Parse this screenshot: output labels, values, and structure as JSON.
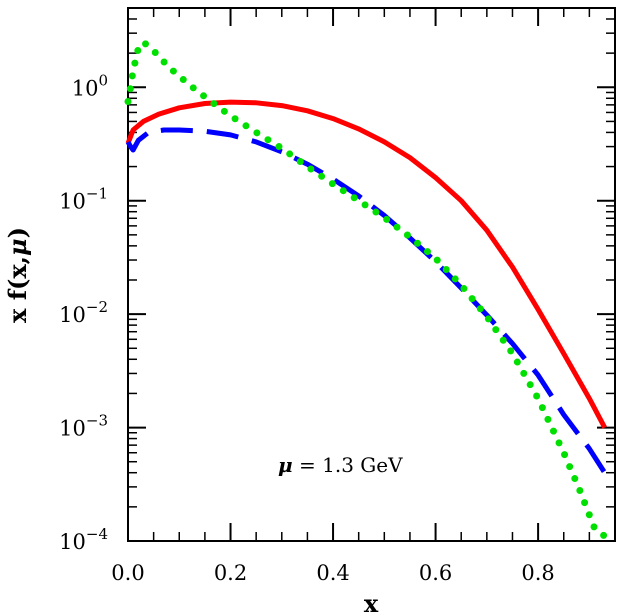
{
  "chart_data": {
    "type": "line",
    "title": "",
    "xlabel": "x",
    "ylabel": "x f(x,μ)",
    "ylabel_parts": {
      "pre": "x f(x,",
      "mu": "μ",
      "post": ")"
    },
    "xlim": [
      0.0,
      0.95
    ],
    "ylim": [
      0.0001,
      5.0
    ],
    "yscale": "log",
    "x_ticks": [
      {
        "value": 0.0,
        "label": "0.0"
      },
      {
        "value": 0.2,
        "label": "0.2"
      },
      {
        "value": 0.4,
        "label": "0.4"
      },
      {
        "value": 0.6,
        "label": "0.6"
      },
      {
        "value": 0.8,
        "label": "0.8"
      }
    ],
    "y_ticks": [
      {
        "value": 1,
        "base": "10",
        "exp": "0"
      },
      {
        "value": 0.1,
        "base": "10",
        "exp": "−1"
      },
      {
        "value": 0.01,
        "base": "10",
        "exp": "−2"
      },
      {
        "value": 0.001,
        "base": "10",
        "exp": "−3"
      },
      {
        "value": 0.0001,
        "base": "10",
        "exp": "−4"
      }
    ],
    "annotation": {
      "mu": "μ",
      "text": " = 1.3 GeV"
    },
    "grid": false,
    "legend": "none",
    "series": [
      {
        "color": "#ff0000",
        "style": "solid",
        "x": [
          0.0,
          0.01,
          0.03,
          0.06,
          0.1,
          0.15,
          0.2,
          0.25,
          0.3,
          0.35,
          0.4,
          0.45,
          0.5,
          0.55,
          0.6,
          0.65,
          0.7,
          0.75,
          0.8,
          0.85,
          0.9,
          0.93
        ],
        "y": [
          0.32,
          0.42,
          0.5,
          0.58,
          0.66,
          0.72,
          0.74,
          0.73,
          0.69,
          0.62,
          0.53,
          0.43,
          0.33,
          0.24,
          0.16,
          0.1,
          0.055,
          0.026,
          0.011,
          0.0045,
          0.0018,
          0.001
        ]
      },
      {
        "color": "#0000ff",
        "style": "dashed",
        "x": [
          0.0,
          0.005,
          0.01,
          0.02,
          0.04,
          0.07,
          0.1,
          0.15,
          0.2,
          0.25,
          0.3,
          0.35,
          0.4,
          0.45,
          0.5,
          0.55,
          0.6,
          0.65,
          0.7,
          0.75,
          0.8,
          0.85,
          0.9,
          0.93
        ],
        "y": [
          0.33,
          0.3,
          0.28,
          0.34,
          0.4,
          0.42,
          0.42,
          0.41,
          0.38,
          0.33,
          0.27,
          0.21,
          0.155,
          0.11,
          0.074,
          0.047,
          0.029,
          0.017,
          0.0098,
          0.0055,
          0.0029,
          0.0013,
          0.00065,
          0.0004
        ]
      },
      {
        "color": "#00e000",
        "style": "dotted",
        "x": [
          0.0,
          0.005,
          0.01,
          0.02,
          0.03,
          0.05,
          0.08,
          0.12,
          0.16,
          0.2,
          0.25,
          0.3,
          0.35,
          0.4,
          0.45,
          0.5,
          0.55,
          0.6,
          0.65,
          0.7,
          0.75,
          0.8,
          0.85,
          0.88,
          0.91,
          0.93
        ],
        "y": [
          0.75,
          1.0,
          1.4,
          2.2,
          2.5,
          2.1,
          1.5,
          1.05,
          0.76,
          0.56,
          0.4,
          0.29,
          0.2,
          0.14,
          0.1,
          0.071,
          0.048,
          0.031,
          0.018,
          0.0095,
          0.0045,
          0.0018,
          0.0006,
          0.00029,
          0.00013,
          0.00011
        ]
      }
    ]
  }
}
